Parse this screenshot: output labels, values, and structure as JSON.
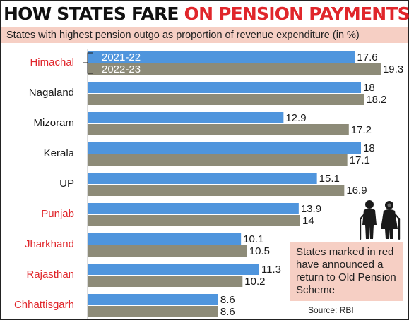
{
  "header": {
    "title_part1": "HOW STATES FARE",
    "title_part2": "ON PENSION PAYMENTS",
    "subtitle": "States with highest pension outgo as proportion of revenue expenditure (in %)"
  },
  "colors": {
    "series_2021_22": "#4f95dd",
    "series_2022_23": "#8d8b78",
    "highlight_red": "#e0262b",
    "note_background": "#f6cfc4"
  },
  "chart_data": {
    "type": "bar",
    "orientation": "horizontal",
    "categories": [
      "Himachal",
      "Nagaland",
      "Mizoram",
      "Kerala",
      "UP",
      "Punjab",
      "Jharkhand",
      "Rajasthan",
      "Chhattisgarh"
    ],
    "highlighted_categories": [
      "Himachal",
      "Punjab",
      "Jharkhand",
      "Rajasthan",
      "Chhattisgarh"
    ],
    "series": [
      {
        "name": "2021-22",
        "values": [
          17.6,
          18,
          12.9,
          18,
          15.1,
          13.9,
          10.1,
          11.3,
          8.6
        ]
      },
      {
        "name": "2022-23",
        "values": [
          19.3,
          18.2,
          17.2,
          17.1,
          16.9,
          14,
          10.5,
          10.2,
          8.6
        ]
      }
    ],
    "value_labels": [
      [
        "17.6",
        "18",
        "12.9",
        "18",
        "15.1",
        "13.9",
        "10.1",
        "11.3",
        "8.6"
      ],
      [
        "19.3",
        "18.2",
        "17.2",
        "17.1",
        "16.9",
        "14",
        "10.5",
        "10.2",
        "8.6"
      ]
    ],
    "xlim": [
      0,
      20
    ],
    "legend": "inside-first-bars",
    "grid": false
  },
  "note": {
    "text": "States marked in red have announced a return to Old Pension Scheme"
  },
  "source": "Source: RBI",
  "icons": {
    "pensioners": "elderly-couple-icon"
  }
}
